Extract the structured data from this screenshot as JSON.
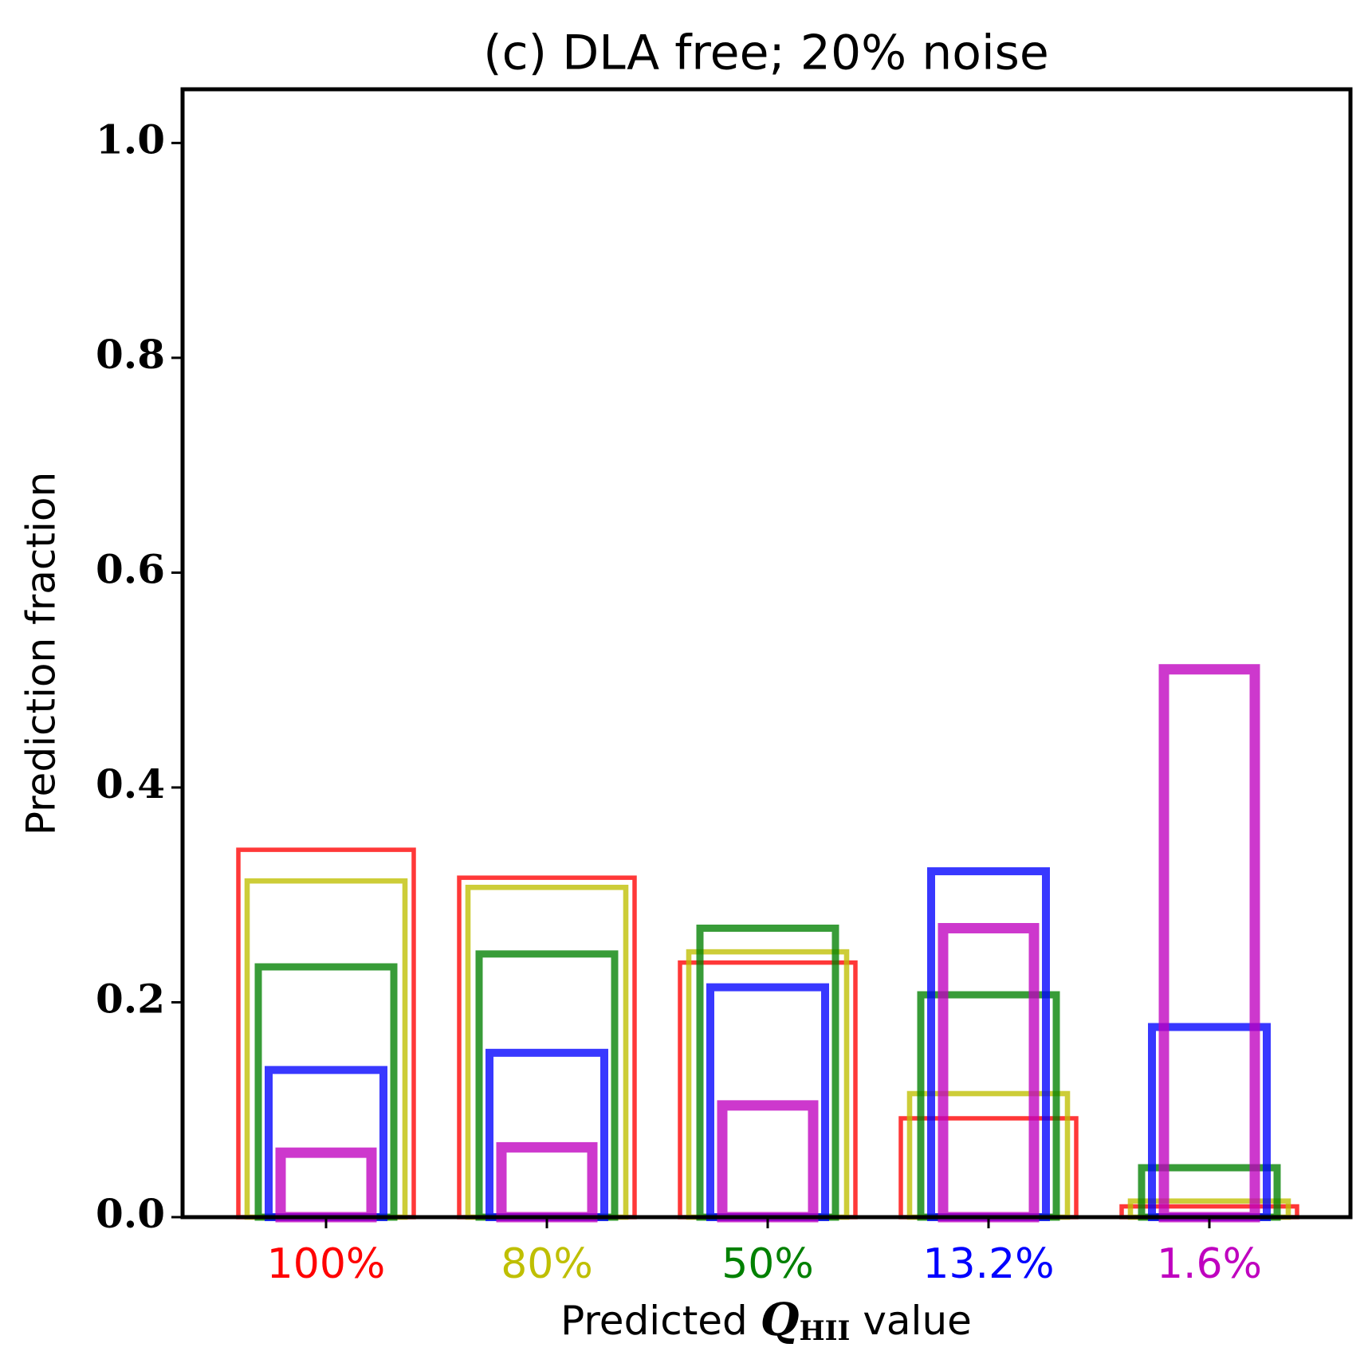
{
  "chart_data": {
    "type": "bar",
    "title": "(c) DLA free; 20% noise",
    "ylabel": "Prediction fraction",
    "xlabel": [
      "Predicted",
      "Q",
      "HII",
      "value"
    ],
    "categories": [
      "100%",
      "80%",
      "50%",
      "13.2%",
      "1.6%"
    ],
    "series": [
      {
        "color": "#ff0000",
        "values": [
          0.342,
          0.316,
          0.237,
          0.092,
          0.01
        ]
      },
      {
        "color": "#bfbf00",
        "values": [
          0.313,
          0.307,
          0.247,
          0.115,
          0.015
        ]
      },
      {
        "color": "#008000",
        "values": [
          0.233,
          0.245,
          0.269,
          0.207,
          0.046
        ]
      },
      {
        "color": "#0000ff",
        "values": [
          0.137,
          0.153,
          0.214,
          0.322,
          0.177
        ]
      },
      {
        "color": "#bf00bf",
        "values": [
          0.06,
          0.065,
          0.104,
          0.269,
          0.51
        ]
      }
    ],
    "ylim": [
      0,
      1.05
    ],
    "yticks": [
      {
        "value": 0,
        "label": "0.0"
      },
      0.2,
      0.4,
      0.6,
      0.8,
      {
        "value": 1,
        "label": "1.0"
      }
    ]
  }
}
